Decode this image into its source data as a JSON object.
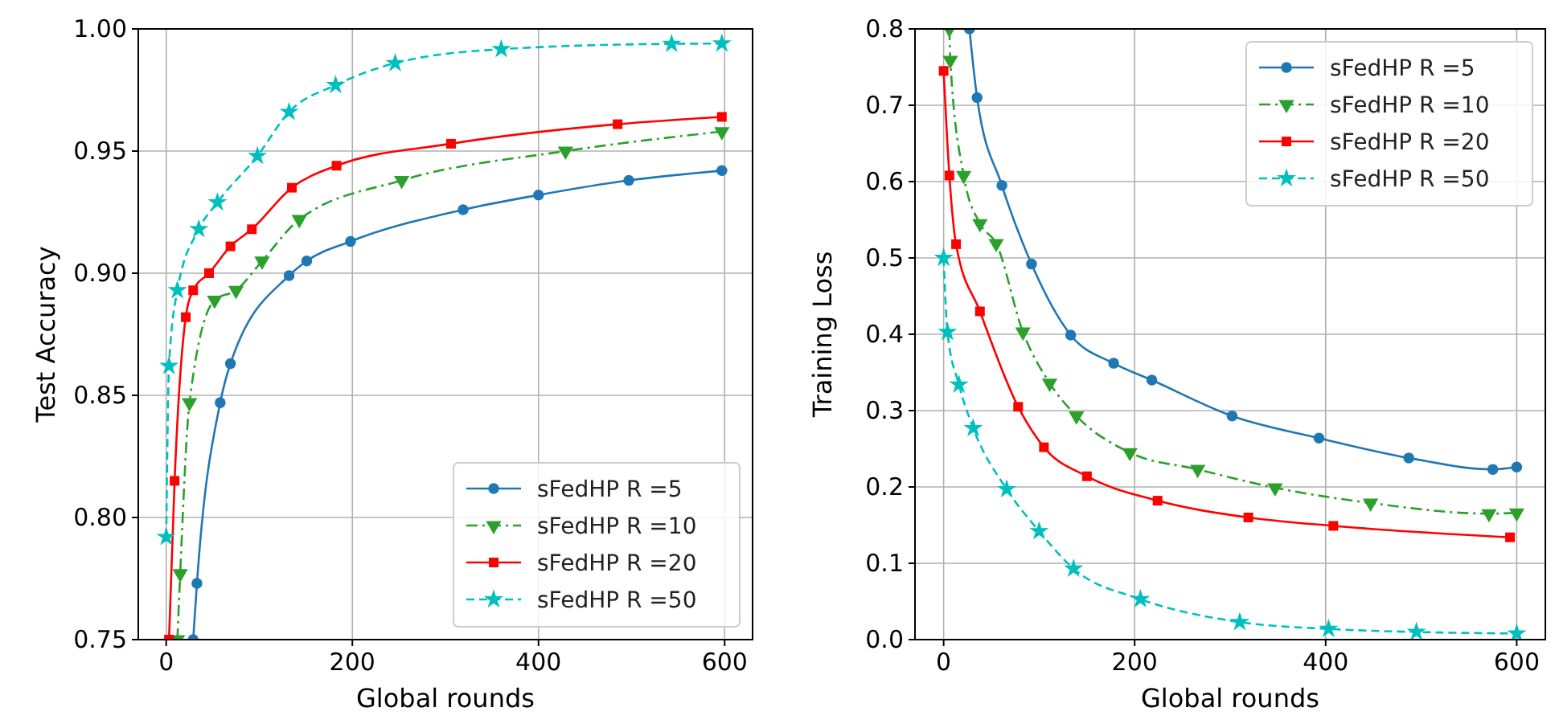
{
  "chart_data": [
    {
      "type": "line",
      "xlabel": "Global rounds",
      "ylabel": "Test Accuracy",
      "xlim": [
        -30,
        630
      ],
      "ylim": [
        0.75,
        1.0
      ],
      "xticks": [
        0,
        200,
        400,
        600
      ],
      "yticks": [
        {
          "value": 0.75,
          "label": "0.75"
        },
        {
          "value": 0.8,
          "label": "0.80"
        },
        {
          "value": 0.85,
          "label": "0.85"
        },
        {
          "value": 0.9,
          "label": "0.90"
        },
        {
          "value": 0.95,
          "label": "0.95"
        },
        {
          "value": 1.0,
          "label": "1.00"
        }
      ],
      "grid": true,
      "legend": "bottom right",
      "series": [
        {
          "name": "sFedHP R =5",
          "color": "#1f77b4",
          "marker": "circle",
          "line_style": "solid",
          "x": [
            29,
            33,
            58,
            69,
            132,
            151,
            198,
            319,
            400,
            497,
            597
          ],
          "values": [
            0.75,
            0.773,
            0.847,
            0.863,
            0.899,
            0.905,
            0.913,
            0.926,
            0.932,
            0.938,
            0.942
          ]
        },
        {
          "name": "sFedHP R =10",
          "color": "#2ca02c",
          "marker": "triangle",
          "line_style": "dashdot",
          "x": [
            12,
            15,
            25,
            52,
            75,
            103,
            143,
            253,
            429,
            597
          ],
          "values": [
            0.75,
            0.777,
            0.847,
            0.889,
            0.893,
            0.905,
            0.922,
            0.938,
            0.95,
            0.958
          ]
        },
        {
          "name": "sFedHP R =20",
          "color": "#ff0000",
          "marker": "square",
          "line_style": "solid",
          "x": [
            3,
            9,
            21,
            29,
            46,
            69,
            92,
            135,
            183,
            306,
            485,
            597
          ],
          "values": [
            0.75,
            0.815,
            0.882,
            0.893,
            0.9,
            0.911,
            0.918,
            0.935,
            0.944,
            0.953,
            0.961,
            0.964
          ]
        },
        {
          "name": "sFedHP R =50",
          "color": "#00bfbf",
          "marker": "star",
          "line_style": "dashed",
          "x": [
            0,
            3,
            12,
            35,
            55,
            98,
            132,
            182,
            246,
            360,
            543,
            597
          ],
          "values": [
            0.792,
            0.862,
            0.893,
            0.918,
            0.929,
            0.948,
            0.966,
            0.977,
            0.986,
            0.9917,
            0.9939,
            0.994
          ]
        }
      ]
    },
    {
      "type": "line",
      "xlabel": "Global rounds",
      "ylabel": "Training Loss",
      "xlim": [
        -30,
        630
      ],
      "ylim": [
        0,
        0.8
      ],
      "xticks": [
        0,
        200,
        400,
        600
      ],
      "yticks": [
        {
          "value": 0,
          "label": "0.0"
        },
        {
          "value": 0.1,
          "label": "0.1"
        },
        {
          "value": 0.2,
          "label": "0.2"
        },
        {
          "value": 0.3,
          "label": "0.3"
        },
        {
          "value": 0.4,
          "label": "0.4"
        },
        {
          "value": 0.5,
          "label": "0.5"
        },
        {
          "value": 0.6,
          "label": "0.6"
        },
        {
          "value": 0.7,
          "label": "0.7"
        },
        {
          "value": 0.8,
          "label": "0.8"
        }
      ],
      "grid": true,
      "legend": "top right",
      "series": [
        {
          "name": "sFedHP R =5",
          "color": "#1f77b4",
          "marker": "circle",
          "line_style": "solid",
          "x": [
            27,
            35,
            61,
            92,
            133,
            178,
            218,
            302,
            393,
            487,
            575,
            600
          ],
          "values": [
            0.8,
            0.71,
            0.595,
            0.492,
            0.399,
            0.362,
            0.34,
            0.293,
            0.264,
            0.238,
            0.223,
            0.226
          ]
        },
        {
          "name": "sFedHP R =10",
          "color": "#2ca02c",
          "marker": "triangle",
          "line_style": "dashdot",
          "x": [
            6,
            7,
            21,
            38,
            55,
            83,
            111,
            139,
            195,
            266,
            347,
            447,
            571,
            600
          ],
          "values": [
            0.8,
            0.759,
            0.608,
            0.545,
            0.519,
            0.403,
            0.336,
            0.293,
            0.245,
            0.223,
            0.199,
            0.179,
            0.165,
            0.166
          ]
        },
        {
          "name": "sFedHP R =20",
          "color": "#ff0000",
          "marker": "square",
          "line_style": "solid",
          "x": [
            0,
            6,
            13,
            38,
            78,
            105,
            150,
            224,
            319,
            408,
            593
          ],
          "values": [
            0.745,
            0.608,
            0.518,
            0.43,
            0.305,
            0.252,
            0.214,
            0.182,
            0.16,
            0.149,
            0.134
          ]
        },
        {
          "name": "sFedHP R =50",
          "color": "#00bfbf",
          "marker": "star",
          "line_style": "dashed",
          "x": [
            0,
            4,
            16,
            31,
            66,
            100,
            136,
            206,
            310,
            403,
            495,
            600
          ],
          "values": [
            0.5,
            0.403,
            0.334,
            0.277,
            0.197,
            0.142,
            0.093,
            0.053,
            0.023,
            0.014,
            0.01,
            0.008
          ]
        }
      ]
    }
  ]
}
